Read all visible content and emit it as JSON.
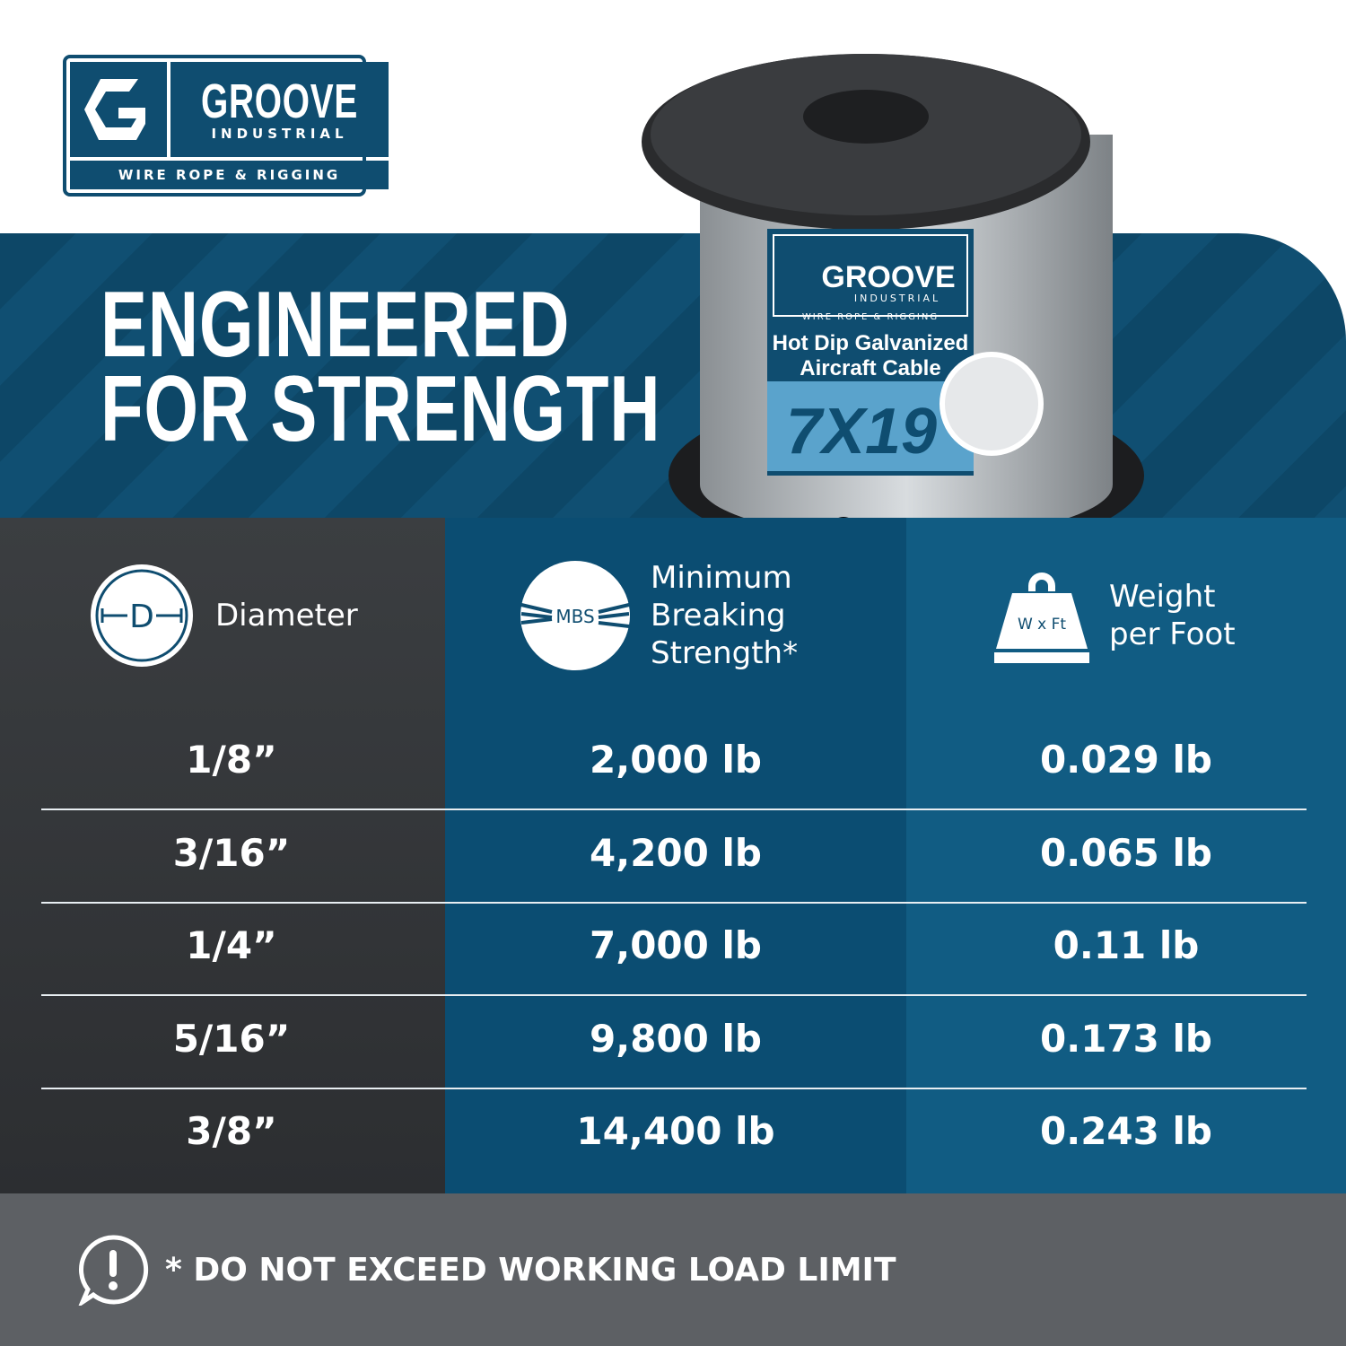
{
  "brand": {
    "name": "GROOVE",
    "sub": "INDUSTRIAL",
    "tagline": "WIRE ROPE & RIGGING",
    "color": "#0f4d70"
  },
  "hero": {
    "title_line1": "ENGINEERED",
    "title_line2": "FOR STRENGTH"
  },
  "product_label": {
    "brand": "GROOVE",
    "sub": "INDUSTRIAL",
    "tagline": "WIRE ROPE & RIGGING",
    "line1": "Hot Dip Galvanized",
    "line2": "Aircraft Cable",
    "construction": "7X19"
  },
  "table": {
    "headers": [
      {
        "icon": "diameter-icon",
        "icon_text": "D",
        "label": "Diameter"
      },
      {
        "icon": "mbs-icon",
        "icon_text": "MBS",
        "label_lines": [
          "Minimum",
          "Breaking",
          "Strength*"
        ]
      },
      {
        "icon": "weight-icon",
        "icon_text": "W x Ft",
        "label_lines": [
          "Weight",
          "per Foot"
        ]
      }
    ],
    "rows": [
      {
        "diameter": "1/8”",
        "mbs": "2,000 lb",
        "weight": "0.029 lb"
      },
      {
        "diameter": "3/16”",
        "mbs": "4,200 lb",
        "weight": "0.065 lb"
      },
      {
        "diameter": "1/4”",
        "mbs": "7,000 lb",
        "weight": "0.11 lb"
      },
      {
        "diameter": "5/16”",
        "mbs": "9,800 lb",
        "weight": "0.173 lb"
      },
      {
        "diameter": "3/8”",
        "mbs": "14,400 lb",
        "weight": "0.243 lb"
      }
    ]
  },
  "footer": {
    "icon": "alert-icon",
    "note": "* DO NOT EXCEED WORKING LOAD LIMIT"
  }
}
